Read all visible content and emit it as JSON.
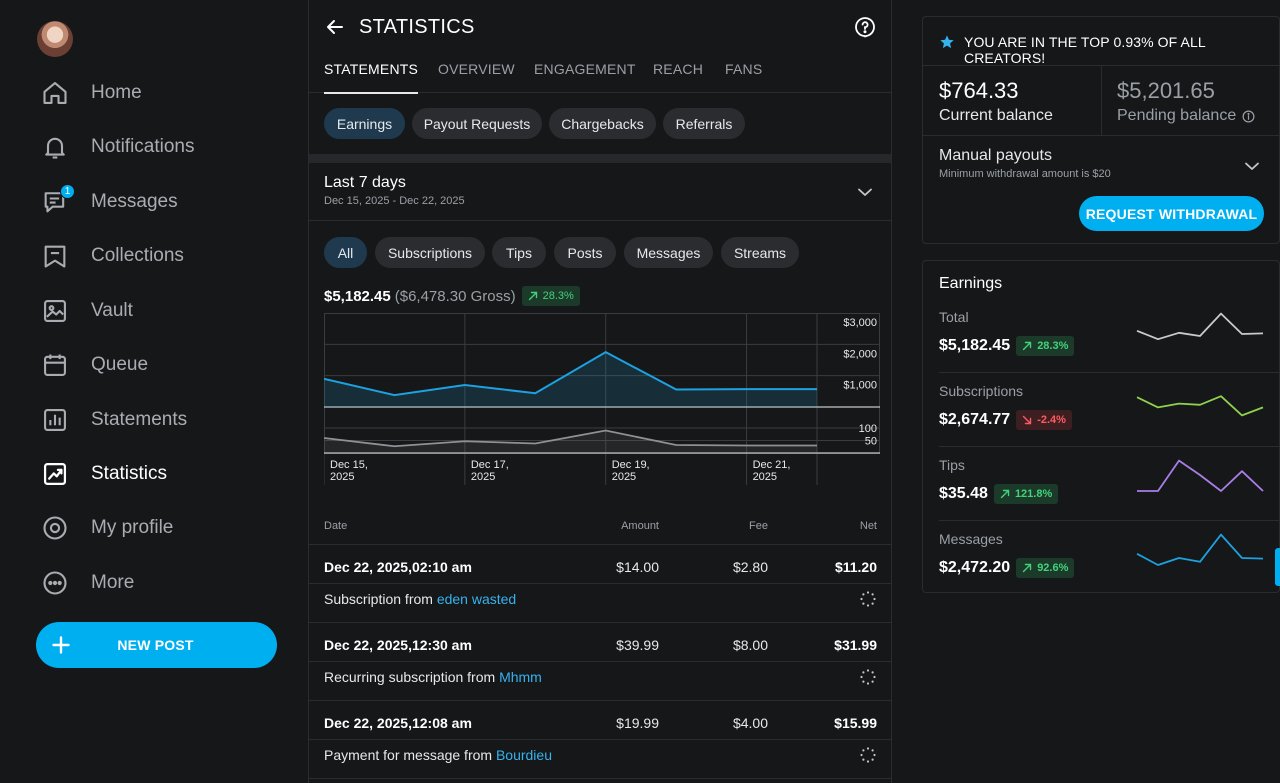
{
  "sidebar": {
    "items": [
      {
        "label": "Home",
        "icon": "home-icon"
      },
      {
        "label": "Notifications",
        "icon": "bell-icon"
      },
      {
        "label": "Messages",
        "icon": "chat-icon",
        "badge": "1"
      },
      {
        "label": "Collections",
        "icon": "bookmark-icon"
      },
      {
        "label": "Vault",
        "icon": "image-icon"
      },
      {
        "label": "Queue",
        "icon": "calendar-icon"
      },
      {
        "label": "Statements",
        "icon": "bar-chart-icon"
      },
      {
        "label": "Statistics",
        "icon": "trend-chart-icon",
        "active": true
      },
      {
        "label": "My profile",
        "icon": "profile-icon"
      },
      {
        "label": "More",
        "icon": "more-icon"
      }
    ],
    "new_post_label": "NEW POST"
  },
  "header": {
    "title": "STATISTICS"
  },
  "tabs": [
    {
      "label": "STATEMENTS",
      "active": true
    },
    {
      "label": "OVERVIEW"
    },
    {
      "label": "ENGAGEMENT"
    },
    {
      "label": "REACH"
    },
    {
      "label": "FANS"
    }
  ],
  "statement_types": [
    {
      "label": "Earnings",
      "active": true
    },
    {
      "label": "Payout Requests"
    },
    {
      "label": "Chargebacks"
    },
    {
      "label": "Referrals"
    }
  ],
  "period": {
    "title": "Last 7 days",
    "range": "Dec 15, 2025 - Dec 22, 2025"
  },
  "filters": [
    {
      "label": "All",
      "active": true
    },
    {
      "label": "Subscriptions"
    },
    {
      "label": "Tips"
    },
    {
      "label": "Posts"
    },
    {
      "label": "Messages"
    },
    {
      "label": "Streams"
    }
  ],
  "summary": {
    "net": "$5,182.45",
    "gross": "($6,478.30 Gross)",
    "change": "28.3%"
  },
  "chart_data": {
    "type": "line",
    "x": [
      "2025-12-15",
      "2025-12-16",
      "2025-12-17",
      "2025-12-18",
      "2025-12-19",
      "2025-12-20",
      "2025-12-21",
      "2025-12-22"
    ],
    "x_tick_labels": [
      {
        "line1": "Dec 15,",
        "line2": "2025"
      },
      {
        "line1": "Dec 17,",
        "line2": "2025"
      },
      {
        "line1": "Dec 19,",
        "line2": "2025"
      },
      {
        "line1": "Dec 21,",
        "line2": "2025"
      }
    ],
    "upper_panel": {
      "y_ticks": [
        "$3,000",
        "$2,000",
        "$1,000"
      ],
      "ylim": [
        0,
        3000
      ],
      "values": [
        900,
        380,
        700,
        440,
        1750,
        560,
        570,
        570
      ],
      "color": "#1da1e0"
    },
    "lower_panel": {
      "y_ticks": [
        "100",
        "50"
      ],
      "ylim": [
        0,
        160
      ],
      "values": [
        60,
        27,
        47,
        38,
        90,
        32,
        30,
        30
      ],
      "color": "#8e9196"
    },
    "grid": true
  },
  "table": {
    "headers": {
      "date": "Date",
      "amount": "Amount",
      "fee": "Fee",
      "net": "Net"
    },
    "rows": [
      {
        "date": "Dec 22, 2025,02:10 am",
        "amount": "$14.00",
        "fee": "$2.80",
        "net": "$11.20",
        "desc": "Subscription from",
        "user": "eden wasted"
      },
      {
        "date": "Dec 22, 2025,12:30 am",
        "amount": "$39.99",
        "fee": "$8.00",
        "net": "$31.99",
        "desc": "Recurring subscription from",
        "user": "Mhmm"
      },
      {
        "date": "Dec 22, 2025,12:08 am",
        "amount": "$19.99",
        "fee": "$4.00",
        "net": "$15.99",
        "desc": "Payment for message from",
        "user": "Bourdieu"
      }
    ]
  },
  "balance": {
    "banner": "YOU ARE IN THE TOP 0.93% OF ALL CREATORS!",
    "current_value": "$764.33",
    "current_label": "Current balance",
    "pending_value": "$5,201.65",
    "pending_label": "Pending balance",
    "payout_title": "Manual payouts",
    "payout_sub": "Minimum withdrawal amount is $20",
    "withdraw_label": "REQUEST WITHDRAWAL"
  },
  "earnings": {
    "title": "Earnings",
    "rows": [
      {
        "label": "Total",
        "value": "$5,182.45",
        "change": "28.3%",
        "direction": "up",
        "color": "#c8cacd",
        "spark": [
          0.38,
          0.12,
          0.32,
          0.22,
          0.92,
          0.28,
          0.3
        ]
      },
      {
        "label": "Subscriptions",
        "value": "$2,674.77",
        "change": "-2.4%",
        "direction": "down",
        "color": "#8fd14f",
        "spark": [
          0.62,
          0.3,
          0.42,
          0.38,
          0.65,
          0.05,
          0.3
        ]
      },
      {
        "label": "Tips",
        "value": "$35.48",
        "change": "121.8%",
        "direction": "up",
        "color": "#a97ee8",
        "spark": [
          0.0,
          0.0,
          0.95,
          0.5,
          0.0,
          0.62,
          0.0
        ]
      },
      {
        "label": "Messages",
        "value": "$2,472.20",
        "change": "92.6%",
        "direction": "up",
        "color": "#1da1e0",
        "spark": [
          0.35,
          0.0,
          0.22,
          0.1,
          0.95,
          0.22,
          0.2
        ]
      }
    ]
  }
}
